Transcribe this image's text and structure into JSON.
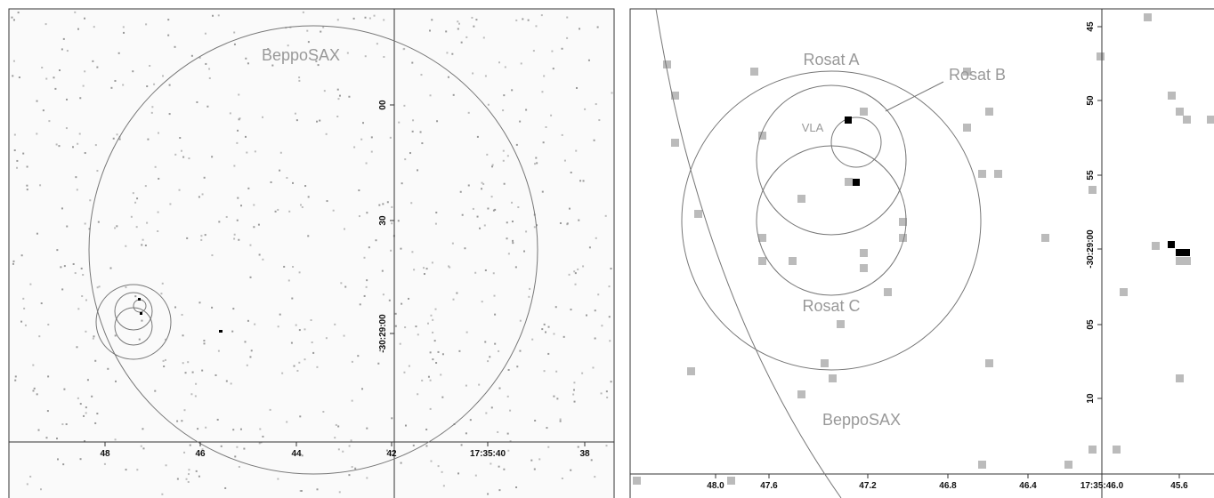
{
  "left_panel": {
    "labels": {
      "beppo": "BeppoSAX"
    },
    "y_axis": [
      "00",
      "30",
      "-30:29:00"
    ],
    "x_axis": [
      "48",
      "46",
      "44",
      "42",
      "17:35:40",
      "38"
    ]
  },
  "right_panel": {
    "labels": {
      "rosat_a": "Rosat A",
      "rosat_b": "Rosat B",
      "rosat_c": "Rosat C",
      "vla": "VLA",
      "beppo": "BeppoSAX"
    },
    "y_axis": [
      "45",
      "50",
      "55",
      "-30:29:00",
      "05",
      "10"
    ],
    "x_axis": [
      "48.0",
      "47.6",
      "47.2",
      "46.8",
      "46.4",
      "17:35:46.0",
      "45.6"
    ]
  }
}
